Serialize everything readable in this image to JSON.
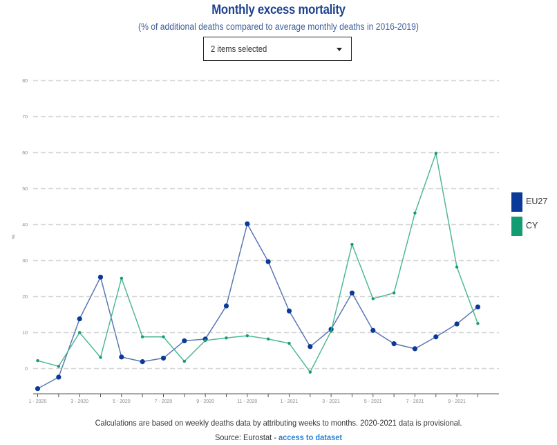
{
  "header": {
    "title": "Monthly excess mortality",
    "subtitle": "(% of additional deaths compared to average monthly deaths in 2016-2019)"
  },
  "filter": {
    "selected_label": "2 items selected",
    "caret_icon": "caret-down-icon"
  },
  "legend": {
    "items": [
      {
        "label": "EU27",
        "color": "#0a3a98"
      },
      {
        "label": "CY",
        "color": "#139c71"
      }
    ]
  },
  "footer": {
    "note": "Calculations are based on weekly deaths data by attributing weeks to months. 2020-2021 data is provisional.",
    "source_prefix": "Source: Eurostat - ",
    "source_link": "access to dataset"
  },
  "chart_data": {
    "type": "line",
    "title": "Monthly excess mortality",
    "subtitle": "(% of additional deaths compared to average monthly deaths in 2016-2019)",
    "xlabel": "",
    "ylabel": "%",
    "ylim": [
      -7,
      80
    ],
    "yticks": [
      0,
      10,
      20,
      30,
      40,
      50,
      60,
      70,
      80
    ],
    "grid": true,
    "legend_position": "right",
    "x": [
      "1 - 2020",
      "2 - 2020",
      "3 - 2020",
      "4 - 2020",
      "5 - 2020",
      "6 - 2020",
      "7 - 2020",
      "8 - 2020",
      "9 - 2020",
      "10 - 2020",
      "11 - 2020",
      "12 - 2020",
      "1 - 2021",
      "2 - 2021",
      "3 - 2021",
      "4 - 2021",
      "5 - 2021",
      "6 - 2021",
      "7 - 2021",
      "8 - 2021",
      "9 - 2021",
      "10 - 2021"
    ],
    "xtick_labels": [
      "1 - 2020",
      "",
      "3 - 2020",
      "",
      "5 - 2020",
      "",
      "7 - 2020",
      "",
      "9 - 2020",
      "",
      "11 - 2020",
      "",
      "1 - 2021",
      "",
      "3 - 2021",
      "",
      "5 - 2021",
      "",
      "7 - 2021",
      "",
      "9 - 2021",
      ""
    ],
    "series": [
      {
        "name": "EU27",
        "color": "#0a3a98",
        "line_color": "#5b76b5",
        "values": [
          -5.6,
          -2.4,
          13.8,
          25.4,
          3.2,
          1.9,
          2.9,
          7.7,
          8.2,
          17.4,
          40.2,
          29.7,
          16.0,
          6.1,
          10.9,
          21.0,
          10.6,
          6.9,
          5.5,
          8.8,
          12.4,
          17.1
        ]
      },
      {
        "name": "CY",
        "color": "#139c71",
        "line_color": "#4fb894",
        "values": [
          2.2,
          0.6,
          10.0,
          3.1,
          25.1,
          8.8,
          8.8,
          2.0,
          7.8,
          8.5,
          9.1,
          8.2,
          7.0,
          -1.0,
          10.4,
          34.5,
          19.4,
          21.0,
          43.2,
          59.8,
          28.2,
          12.5
        ]
      }
    ]
  }
}
